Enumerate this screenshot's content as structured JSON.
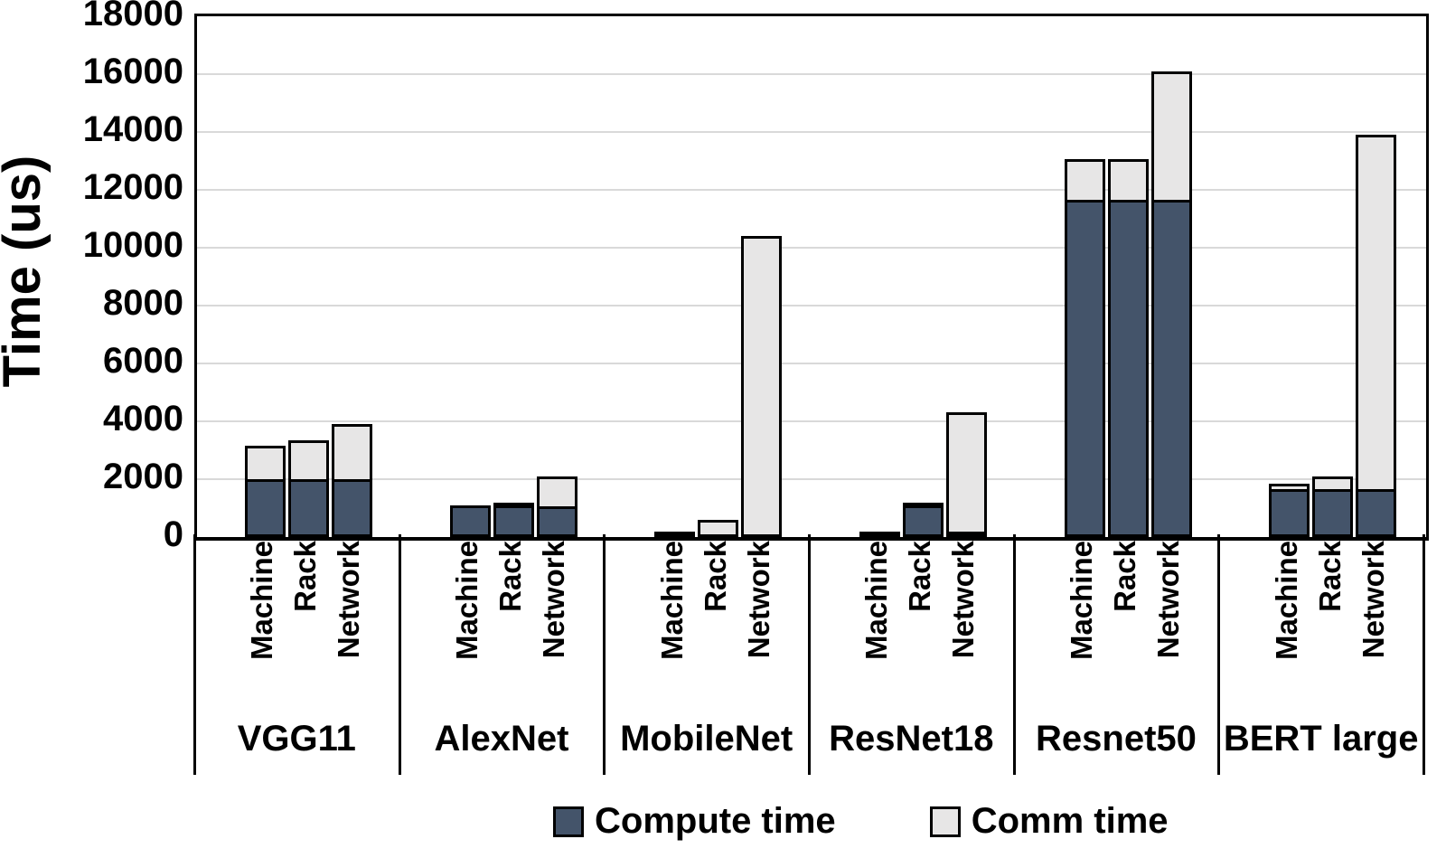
{
  "chart_data": {
    "type": "bar",
    "stacked": true,
    "title": "",
    "ylabel": "Time (us)",
    "xlabel": "",
    "ylim": [
      0,
      18000
    ],
    "ytick_step": 2000,
    "yticks": [
      0,
      2000,
      4000,
      6000,
      8000,
      10000,
      12000,
      14000,
      16000,
      18000
    ],
    "grid": true,
    "legend_position": "bottom",
    "groups": [
      "VGG11",
      "AlexNet",
      "MobileNet",
      "ResNet18",
      "Resnet50",
      "BERT large"
    ],
    "bars_per_group": [
      "Machine",
      "Rack",
      "Network"
    ],
    "series": [
      {
        "name": "Compute time",
        "color": "#44546A",
        "values": [
          [
            2000,
            2000,
            2000
          ],
          [
            1100,
            1100,
            1050
          ],
          [
            150,
            100,
            100
          ],
          [
            200,
            1100,
            200
          ],
          [
            11650,
            11650,
            11650
          ],
          [
            1650,
            1650,
            1650
          ]
        ]
      },
      {
        "name": "Comm time",
        "color": "#E7E6E6",
        "values": [
          [
            1150,
            1350,
            1900
          ],
          [
            0,
            100,
            1050
          ],
          [
            0,
            500,
            10300
          ],
          [
            0,
            100,
            4100
          ],
          [
            1400,
            1400,
            4450
          ],
          [
            200,
            450,
            12250
          ]
        ]
      }
    ],
    "colors": {
      "compute": "#44546A",
      "comm": "#E7E6E6",
      "gridline": "#D9D9D9",
      "axis": "#000000"
    }
  }
}
